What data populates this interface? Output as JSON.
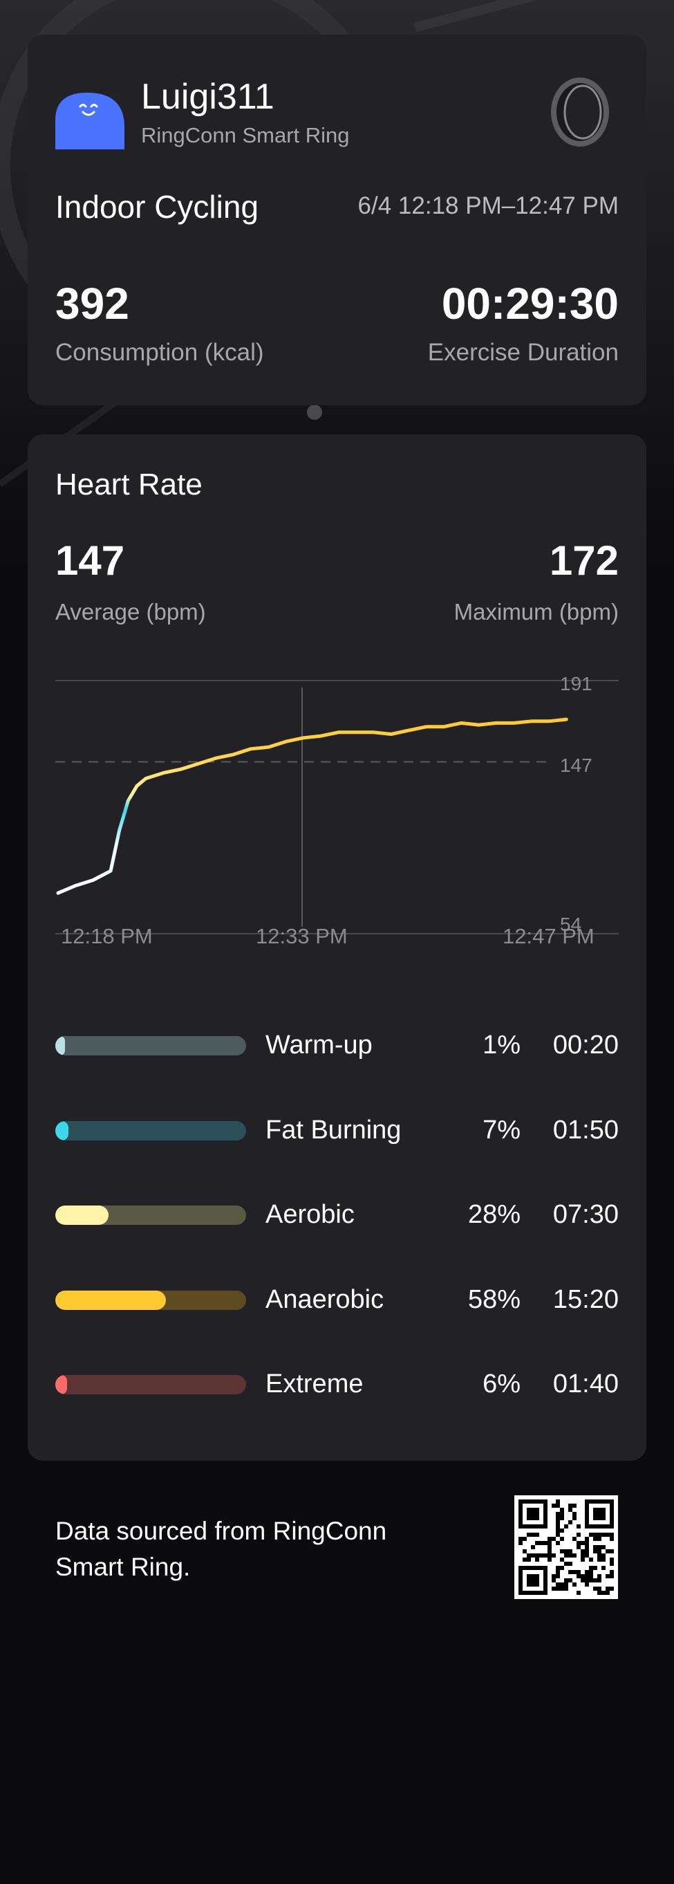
{
  "colors": {
    "background": "#0b0b0e",
    "card": "#222226",
    "avatar": "#4a74ff",
    "warmup": "#b8e0e6",
    "fat_burning": "#3ed6ea",
    "aerobic": "#fff3a8",
    "anaerobic": "#ffc931",
    "extreme": "#ff6a66"
  },
  "profile": {
    "username": "Luigi311",
    "device": "RingConn Smart Ring",
    "avatar_icon": "smiling-blob-avatar",
    "ring_icon": "ring-icon"
  },
  "activity": {
    "name": "Indoor Cycling",
    "time_range": "6/4 12:18 PM–12:47 PM",
    "consumption_value": "392",
    "consumption_label": "Consumption (kcal)",
    "duration_value": "00:29:30",
    "duration_label": "Exercise Duration"
  },
  "heart_rate": {
    "title": "Heart Rate",
    "average_value": "147",
    "average_label": "Average (bpm)",
    "maximum_value": "172",
    "maximum_label": "Maximum (bpm)"
  },
  "chart_data": {
    "type": "line",
    "ytick_labels": [
      "191",
      "147",
      "54"
    ],
    "ylim": [
      54,
      191
    ],
    "reference_line": 147,
    "xtick_labels": [
      "12:18 PM",
      "12:33 PM",
      "12:47 PM"
    ],
    "x_minutes": [
      0,
      1,
      2,
      3,
      3.5,
      4,
      4.5,
      5,
      6,
      7,
      8,
      9,
      10,
      11,
      12,
      13,
      14,
      15,
      16,
      17,
      18,
      19,
      20,
      21,
      22,
      23,
      24,
      25,
      26,
      27,
      28,
      29
    ],
    "values": [
      76,
      80,
      83,
      88,
      110,
      126,
      134,
      138,
      141,
      143,
      146,
      149,
      151,
      154,
      155,
      158,
      160,
      161,
      163,
      163,
      163,
      162,
      164,
      166,
      166,
      168,
      167,
      168,
      168,
      169,
      169,
      170
    ],
    "grid": false
  },
  "zones": [
    {
      "name": "Warm-up",
      "percent": "1%",
      "fraction": 0.01,
      "duration": "00:20",
      "color": "#b8e0e6",
      "track": "#4e5b5e"
    },
    {
      "name": "Fat Burning",
      "percent": "7%",
      "fraction": 0.07,
      "duration": "01:50",
      "color": "#3ed6ea",
      "track": "#2b5058"
    },
    {
      "name": "Aerobic",
      "percent": "28%",
      "fraction": 0.28,
      "duration": "07:30",
      "color": "#fff3a8",
      "track": "#5a5944"
    },
    {
      "name": "Anaerobic",
      "percent": "58%",
      "fraction": 0.58,
      "duration": "15:20",
      "color": "#ffc931",
      "track": "#5e4b22"
    },
    {
      "name": "Extreme",
      "percent": "6%",
      "fraction": 0.06,
      "duration": "01:40",
      "color": "#ff6a66",
      "track": "#5c3434"
    }
  ],
  "footer": {
    "text": "Data sourced from RingConn Smart Ring.",
    "qr_icon": "qr-code-icon"
  }
}
